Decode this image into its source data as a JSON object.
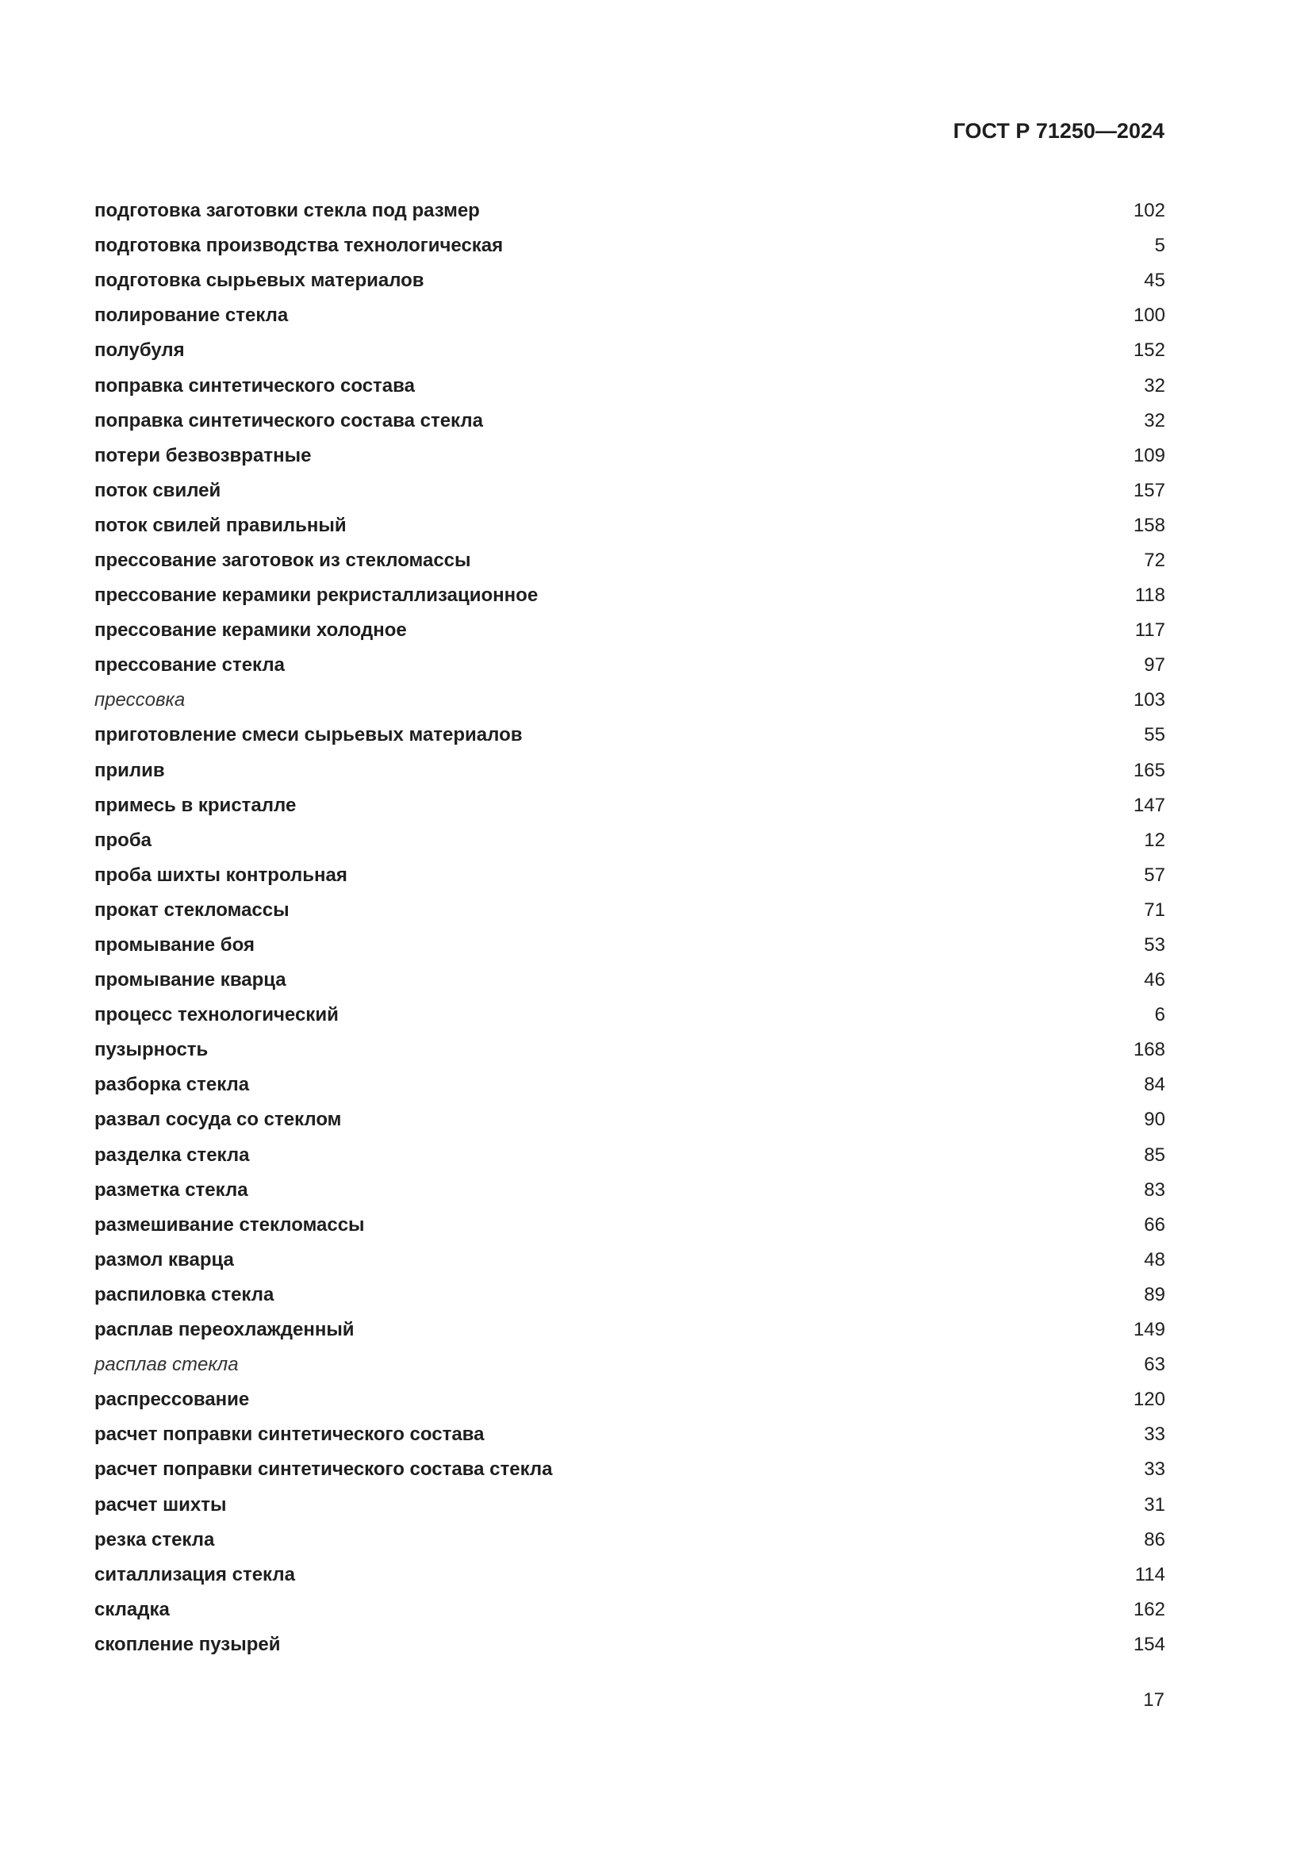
{
  "header": {
    "doc_code": "ГОСТ Р 71250—2024"
  },
  "entries": [
    {
      "term": "подготовка заготовки стекла под размер",
      "page": "102",
      "italic": false
    },
    {
      "term": "подготовка производства технологическая",
      "page": "5",
      "italic": false
    },
    {
      "term": "подготовка сырьевых материалов",
      "page": "45",
      "italic": false
    },
    {
      "term": "полирование стекла",
      "page": "100",
      "italic": false
    },
    {
      "term": "полубуля",
      "page": "152",
      "italic": false
    },
    {
      "term": "поправка синтетического состава",
      "page": "32",
      "italic": false
    },
    {
      "term": "поправка синтетического состава стекла",
      "page": "32",
      "italic": false
    },
    {
      "term": "потери безвозвратные",
      "page": "109",
      "italic": false
    },
    {
      "term": "поток свилей",
      "page": "157",
      "italic": false
    },
    {
      "term": "поток свилей правильный",
      "page": "158",
      "italic": false
    },
    {
      "term": "прессование заготовок из стекломассы",
      "page": "72",
      "italic": false
    },
    {
      "term": "прессование керамики рекристаллизационное",
      "page": "118",
      "italic": false
    },
    {
      "term": "прессование керамики холодное",
      "page": "117",
      "italic": false
    },
    {
      "term": "прессование стекла",
      "page": "97",
      "italic": false
    },
    {
      "term": "прессовка",
      "page": "103",
      "italic": true
    },
    {
      "term": "приготовление смеси сырьевых материалов",
      "page": "55",
      "italic": false
    },
    {
      "term": "прилив",
      "page": "165",
      "italic": false
    },
    {
      "term": "примесь в кристалле",
      "page": "147",
      "italic": false
    },
    {
      "term": "проба",
      "page": "12",
      "italic": false
    },
    {
      "term": "проба шихты контрольная",
      "page": "57",
      "italic": false
    },
    {
      "term": "прокат стекломассы",
      "page": "71",
      "italic": false
    },
    {
      "term": "промывание боя",
      "page": "53",
      "italic": false
    },
    {
      "term": "промывание кварца",
      "page": "46",
      "italic": false
    },
    {
      "term": "процесс технологический",
      "page": "6",
      "italic": false
    },
    {
      "term": "пузырность",
      "page": "168",
      "italic": false
    },
    {
      "term": "разборка стекла",
      "page": "84",
      "italic": false
    },
    {
      "term": "развал сосуда со стеклом",
      "page": "90",
      "italic": false
    },
    {
      "term": "разделка стекла",
      "page": "85",
      "italic": false
    },
    {
      "term": "разметка стекла",
      "page": "83",
      "italic": false
    },
    {
      "term": "размешивание стекломассы",
      "page": "66",
      "italic": false
    },
    {
      "term": "размол кварца",
      "page": "48",
      "italic": false
    },
    {
      "term": "распиловка стекла",
      "page": "89",
      "italic": false
    },
    {
      "term": "расплав переохлажденный",
      "page": "149",
      "italic": false
    },
    {
      "term": "расплав стекла",
      "page": "63",
      "italic": true
    },
    {
      "term": "распрессование",
      "page": "120",
      "italic": false
    },
    {
      "term": "расчет поправки синтетического состава",
      "page": "33",
      "italic": false
    },
    {
      "term": "расчет поправки синтетического состава стекла",
      "page": "33",
      "italic": false
    },
    {
      "term": "расчет шихты",
      "page": "31",
      "italic": false
    },
    {
      "term": "резка стекла",
      "page": "86",
      "italic": false
    },
    {
      "term": "ситаллизация стекла",
      "page": "114",
      "italic": false
    },
    {
      "term": "складка",
      "page": "162",
      "italic": false
    },
    {
      "term": "скопление пузырей",
      "page": "154",
      "italic": false
    }
  ],
  "footer": {
    "page_number": "17"
  }
}
